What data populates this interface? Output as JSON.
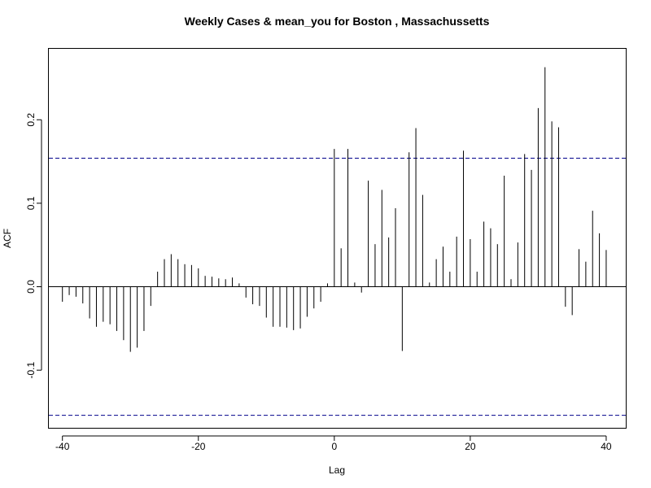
{
  "chart_data": {
    "type": "bar",
    "title": "Weekly Cases & mean_you for Boston , Massachussetts",
    "xlabel": "Lag",
    "ylabel": "ACF",
    "xlim": [
      -42,
      43
    ],
    "ylim": [
      -0.17,
      0.285
    ],
    "x_ticks": [
      -40,
      -20,
      0,
      20,
      40
    ],
    "x_tick_labels": [
      "-40",
      "-20",
      "0",
      "20",
      "40"
    ],
    "y_ticks": [
      -0.1,
      0.0,
      0.1,
      0.2
    ],
    "y_tick_labels": [
      "-0.1",
      "0.0",
      "0.1",
      "0.2"
    ],
    "confidence_band": [
      -0.154,
      0.154
    ],
    "zero_line": true,
    "grid": false,
    "colors": {
      "bars": "#000000",
      "confidence_band": "#00008b",
      "axes": "#000000"
    },
    "lags": [
      -40,
      -39,
      -38,
      -37,
      -36,
      -35,
      -34,
      -33,
      -32,
      -31,
      -30,
      -29,
      -28,
      -27,
      -26,
      -25,
      -24,
      -23,
      -22,
      -21,
      -20,
      -19,
      -18,
      -17,
      -16,
      -15,
      -14,
      -13,
      -12,
      -11,
      -10,
      -9,
      -8,
      -7,
      -6,
      -5,
      -4,
      -3,
      -2,
      -1,
      0,
      1,
      2,
      3,
      4,
      5,
      6,
      7,
      8,
      9,
      10,
      11,
      12,
      13,
      14,
      15,
      16,
      17,
      18,
      19,
      20,
      21,
      22,
      23,
      24,
      25,
      26,
      27,
      28,
      29,
      30,
      31,
      32,
      33,
      34,
      35,
      36,
      37,
      38,
      39,
      40
    ],
    "values": [
      -0.018,
      -0.01,
      -0.012,
      -0.02,
      -0.038,
      -0.048,
      -0.042,
      -0.045,
      -0.053,
      -0.064,
      -0.078,
      -0.073,
      -0.053,
      -0.023,
      0.018,
      0.033,
      0.039,
      0.033,
      0.027,
      0.026,
      0.022,
      0.013,
      0.012,
      0.01,
      0.009,
      0.011,
      0.004,
      -0.013,
      -0.021,
      -0.023,
      -0.037,
      -0.048,
      -0.048,
      -0.049,
      -0.052,
      -0.05,
      -0.036,
      -0.026,
      -0.018,
      0.004,
      0.165,
      0.046,
      0.165,
      0.005,
      -0.007,
      0.127,
      0.051,
      0.116,
      0.059,
      0.094,
      -0.077,
      0.161,
      0.19,
      0.11,
      0.005,
      0.033,
      0.048,
      0.018,
      0.06,
      0.163,
      0.057,
      0.018,
      0.078,
      0.07,
      0.051,
      0.133,
      0.009,
      0.053,
      0.159,
      0.14,
      0.214,
      0.263,
      0.198,
      0.191,
      -0.024,
      -0.034,
      0.045,
      0.03,
      0.091,
      0.064,
      0.044
    ]
  }
}
